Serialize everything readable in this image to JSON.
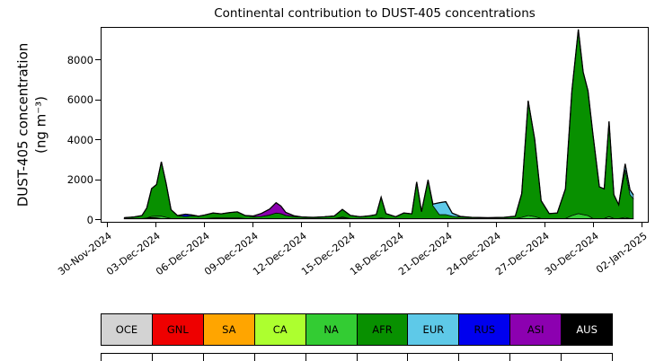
{
  "figure": {
    "title": "Continental contribution to DUST-405 concentrations",
    "ylabel_line1": "DUST-405 concentration",
    "ylabel_line2": "(ng m⁻³)"
  },
  "chart_data": {
    "type": "area",
    "stacked": true,
    "title": "Continental contribution to DUST-405 concentrations",
    "xlabel": "",
    "ylabel": "DUST-405 concentration (ng m⁻³)",
    "x_unit": "days since 30-Nov-2024",
    "grid": false,
    "legend_position": "bottom-table",
    "xlim": [
      -0.4,
      33.4
    ],
    "ylim": [
      -150,
      9650
    ],
    "yticks": [
      0,
      2000,
      4000,
      6000,
      8000
    ],
    "x_ticks": {
      "positions": [
        0,
        3,
        6,
        9,
        12,
        15,
        18,
        21,
        24,
        27,
        30,
        33
      ],
      "labels": [
        "30-Nov-2024",
        "03-Dec-2024",
        "06-Dec-2024",
        "09-Dec-2024",
        "12-Dec-2024",
        "15-Dec-2024",
        "18-Dec-2024",
        "21-Dec-2024",
        "24-Dec-2024",
        "27-Dec-2024",
        "30-Dec-2024",
        "02-Jan-2025"
      ]
    },
    "x": [
      1.0,
      1.6,
      2.1,
      2.4,
      2.7,
      3.0,
      3.3,
      3.6,
      3.9,
      4.3,
      4.8,
      5.2,
      5.6,
      6.0,
      6.5,
      7.0,
      7.5,
      8.0,
      8.5,
      9.0,
      9.5,
      10.0,
      10.4,
      10.7,
      11.0,
      11.5,
      12.0,
      12.7,
      13.4,
      14.0,
      14.5,
      15.0,
      15.6,
      16.2,
      16.6,
      16.9,
      17.2,
      17.8,
      18.3,
      18.8,
      19.1,
      19.4,
      19.8,
      20.1,
      20.5,
      20.9,
      21.3,
      21.8,
      22.5,
      23.5,
      24.5,
      25.2,
      25.6,
      26.0,
      26.4,
      26.8,
      27.3,
      27.8,
      28.3,
      28.7,
      29.1,
      29.4,
      29.7,
      30.0,
      30.4,
      30.7,
      31.0,
      31.3,
      31.6,
      32.0,
      32.3,
      32.5
    ],
    "series": [
      {
        "name": "OCE",
        "color": "#d3d3d3",
        "values": [
          15,
          15,
          15,
          15,
          15,
          15,
          15,
          15,
          15,
          15,
          15,
          15,
          15,
          15,
          15,
          15,
          15,
          15,
          15,
          15,
          15,
          15,
          15,
          15,
          15,
          15,
          15,
          15,
          15,
          15,
          15,
          15,
          15,
          15,
          15,
          15,
          15,
          15,
          15,
          15,
          15,
          15,
          15,
          15,
          15,
          15,
          15,
          15,
          15,
          15,
          15,
          15,
          15,
          15,
          15,
          15,
          15,
          15,
          15,
          15,
          15,
          15,
          15,
          15,
          15,
          15,
          15,
          15,
          15,
          15,
          15,
          15
        ]
      },
      {
        "name": "GNL",
        "color": "#ee0000",
        "values": [
          0,
          0,
          0,
          30,
          50,
          40,
          0,
          0,
          0,
          0,
          0,
          0,
          0,
          0,
          0,
          0,
          0,
          0,
          0,
          0,
          0,
          0,
          0,
          0,
          0,
          0,
          0,
          0,
          0,
          0,
          0,
          0,
          0,
          0,
          0,
          0,
          0,
          0,
          0,
          0,
          0,
          0,
          0,
          0,
          0,
          0,
          0,
          0,
          0,
          0,
          0,
          0,
          0,
          0,
          0,
          0,
          0,
          0,
          0,
          0,
          0,
          0,
          0,
          0,
          0,
          0,
          0,
          0,
          0,
          0,
          0,
          0
        ]
      },
      {
        "name": "SA",
        "color": "#ffa500",
        "values": [
          0,
          0,
          0,
          0,
          0,
          0,
          0,
          0,
          0,
          0,
          0,
          0,
          0,
          0,
          0,
          0,
          0,
          0,
          0,
          0,
          0,
          0,
          0,
          0,
          0,
          0,
          0,
          0,
          0,
          0,
          0,
          0,
          0,
          0,
          0,
          0,
          0,
          0,
          0,
          0,
          0,
          0,
          0,
          0,
          0,
          0,
          0,
          0,
          0,
          0,
          0,
          0,
          0,
          0,
          0,
          0,
          0,
          0,
          0,
          0,
          0,
          0,
          0,
          0,
          0,
          0,
          0,
          0,
          0,
          0,
          0,
          0
        ]
      },
      {
        "name": "CA",
        "color": "#adff2f",
        "values": [
          0,
          0,
          0,
          0,
          0,
          0,
          0,
          0,
          0,
          0,
          0,
          0,
          0,
          0,
          0,
          0,
          0,
          0,
          0,
          0,
          0,
          0,
          0,
          0,
          0,
          0,
          0,
          0,
          0,
          0,
          30,
          0,
          0,
          0,
          0,
          30,
          0,
          0,
          0,
          0,
          0,
          0,
          0,
          0,
          0,
          0,
          0,
          0,
          0,
          0,
          0,
          0,
          0,
          0,
          0,
          0,
          0,
          0,
          0,
          0,
          0,
          0,
          0,
          0,
          0,
          0,
          0,
          0,
          0,
          0,
          0,
          0
        ]
      },
      {
        "name": "NA",
        "color": "#33cc33",
        "values": [
          0,
          0,
          0,
          0,
          60,
          80,
          120,
          60,
          0,
          0,
          0,
          0,
          0,
          0,
          30,
          40,
          40,
          40,
          0,
          0,
          0,
          0,
          0,
          0,
          0,
          0,
          0,
          0,
          0,
          0,
          50,
          0,
          0,
          0,
          0,
          0,
          0,
          0,
          0,
          0,
          0,
          0,
          0,
          0,
          0,
          0,
          0,
          0,
          0,
          0,
          0,
          0,
          60,
          150,
          100,
          0,
          0,
          0,
          0,
          150,
          250,
          200,
          150,
          0,
          0,
          0,
          100,
          0,
          0,
          60,
          0,
          0
        ]
      },
      {
        "name": "AFR",
        "color": "#089000",
        "values": [
          40,
          80,
          150,
          500,
          1400,
          1600,
          2750,
          1700,
          450,
          150,
          100,
          130,
          120,
          180,
          250,
          200,
          260,
          300,
          150,
          90,
          110,
          180,
          280,
          250,
          160,
          100,
          80,
          60,
          90,
          130,
          380,
          160,
          90,
          140,
          200,
          1050,
          250,
          90,
          280,
          240,
          1850,
          350,
          1950,
          650,
          200,
          200,
          120,
          80,
          60,
          40,
          60,
          120,
          1200,
          5800,
          3900,
          900,
          250,
          280,
          1500,
          6300,
          9300,
          7200,
          6300,
          4300,
          1600,
          1500,
          4800,
          1200,
          700,
          2400,
          1200,
          1000
        ]
      },
      {
        "name": "EUR",
        "color": "#5ec9e8",
        "values": [
          0,
          0,
          0,
          0,
          0,
          0,
          0,
          0,
          0,
          0,
          0,
          0,
          0,
          0,
          0,
          0,
          0,
          0,
          0,
          0,
          0,
          0,
          0,
          0,
          0,
          0,
          0,
          0,
          0,
          0,
          0,
          0,
          0,
          0,
          0,
          0,
          0,
          0,
          0,
          0,
          0,
          0,
          0,
          80,
          600,
          650,
          150,
          30,
          0,
          0,
          0,
          0,
          0,
          0,
          0,
          0,
          0,
          0,
          0,
          0,
          0,
          0,
          0,
          0,
          0,
          0,
          0,
          0,
          0,
          300,
          250,
          200
        ]
      },
      {
        "name": "RUS",
        "color": "#0000ee",
        "values": [
          0,
          0,
          0,
          0,
          0,
          0,
          0,
          0,
          0,
          0,
          120,
          50,
          0,
          0,
          0,
          0,
          0,
          0,
          0,
          0,
          0,
          0,
          0,
          0,
          0,
          0,
          0,
          0,
          0,
          0,
          0,
          0,
          0,
          0,
          0,
          0,
          0,
          0,
          0,
          0,
          0,
          0,
          0,
          0,
          0,
          0,
          0,
          0,
          0,
          0,
          0,
          0,
          0,
          0,
          0,
          0,
          0,
          0,
          0,
          0,
          0,
          0,
          0,
          0,
          0,
          0,
          0,
          0,
          0,
          0,
          0,
          0
        ]
      },
      {
        "name": "ASI",
        "color": "#8c00b0",
        "values": [
          0,
          0,
          0,
          0,
          0,
          0,
          0,
          0,
          0,
          0,
          0,
          0,
          0,
          0,
          0,
          0,
          0,
          0,
          0,
          40,
          150,
          300,
          520,
          380,
          150,
          40,
          0,
          0,
          0,
          0,
          0,
          0,
          0,
          0,
          0,
          0,
          0,
          0,
          0,
          0,
          0,
          0,
          0,
          0,
          0,
          0,
          0,
          0,
          0,
          0,
          0,
          0,
          0,
          0,
          0,
          0,
          0,
          0,
          0,
          0,
          0,
          0,
          0,
          0,
          0,
          0,
          0,
          0,
          0,
          0,
          0,
          0
        ]
      },
      {
        "name": "AUS",
        "color": "#000000",
        "values": [
          0,
          0,
          0,
          0,
          0,
          0,
          0,
          0,
          0,
          0,
          0,
          0,
          0,
          0,
          0,
          0,
          0,
          0,
          0,
          0,
          0,
          0,
          0,
          0,
          0,
          0,
          0,
          0,
          0,
          0,
          0,
          0,
          0,
          0,
          0,
          0,
          0,
          0,
          0,
          0,
          0,
          0,
          0,
          0,
          0,
          0,
          0,
          0,
          0,
          0,
          0,
          0,
          0,
          0,
          0,
          0,
          0,
          0,
          0,
          0,
          0,
          0,
          0,
          0,
          0,
          0,
          0,
          0,
          0,
          0,
          0,
          0
        ]
      }
    ]
  }
}
